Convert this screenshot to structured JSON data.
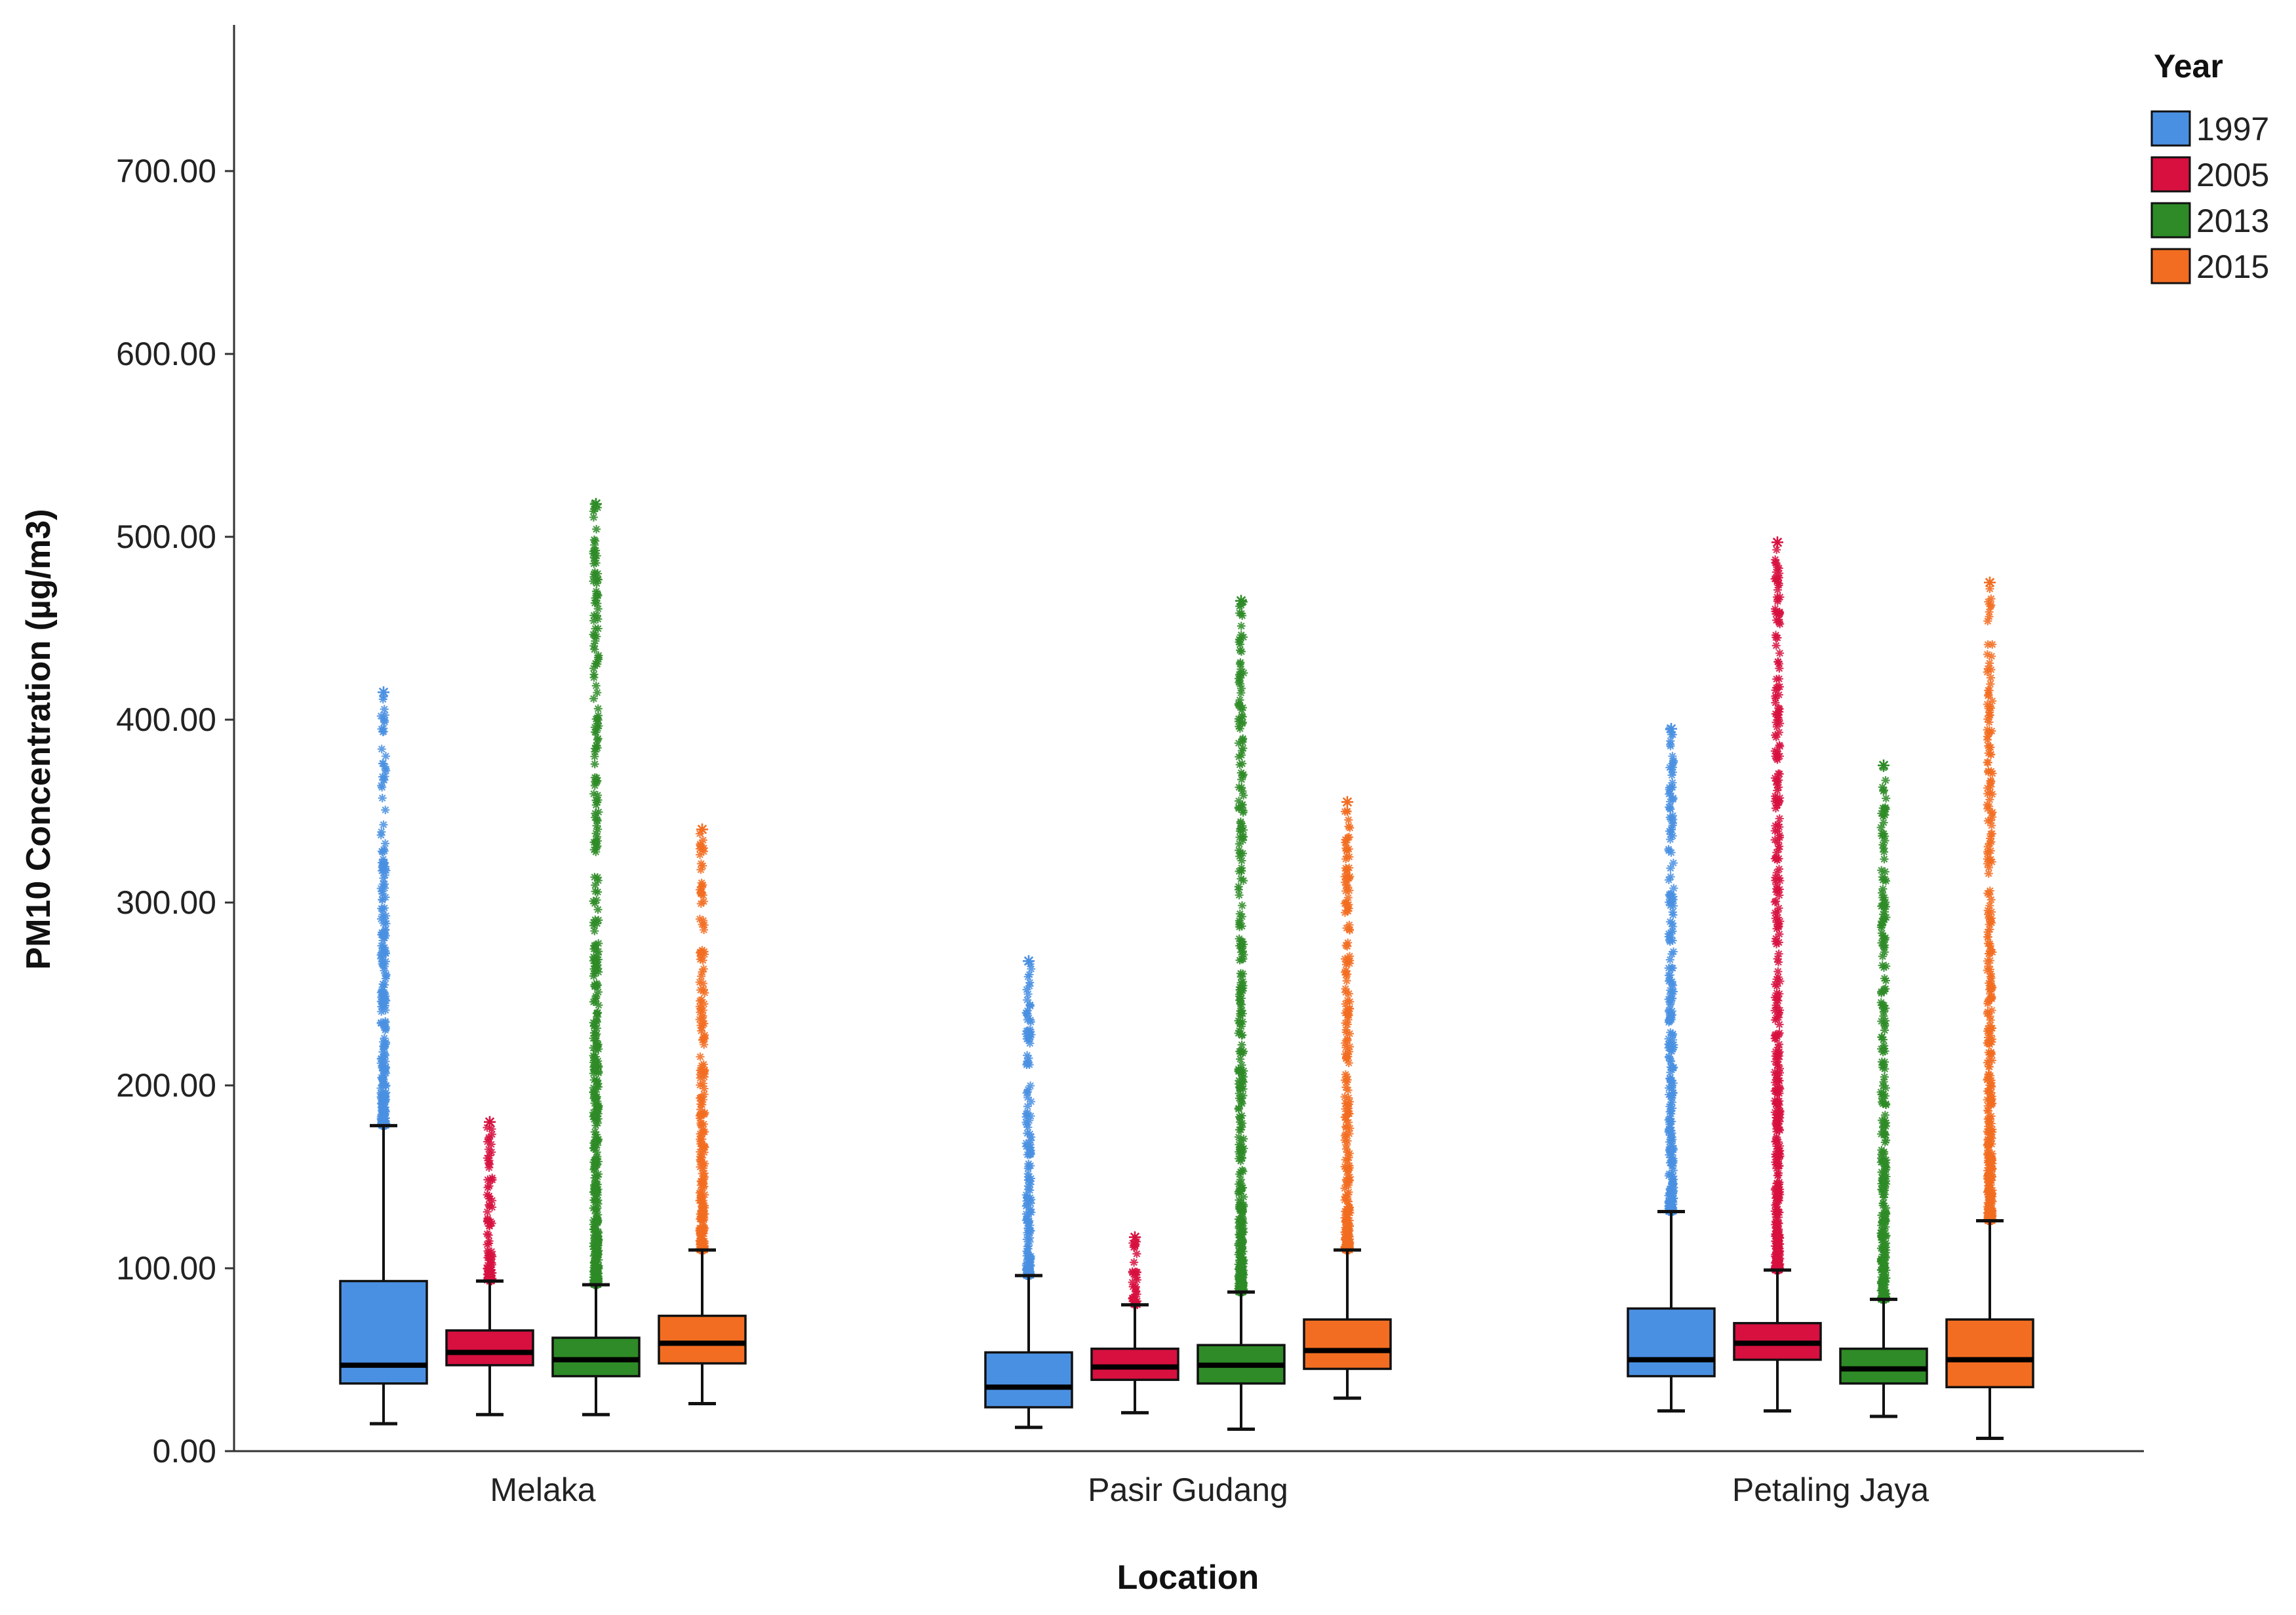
{
  "chart_data": {
    "type": "boxplot",
    "title": "",
    "xlabel": "Location",
    "ylabel": "PM10 Concentration (µg/m3)",
    "ylim": [
      0,
      780
    ],
    "yticks": [
      0,
      100,
      200,
      300,
      400,
      500,
      600,
      700
    ],
    "ytick_labels": [
      "0.00",
      "100.00",
      "200.00",
      "300.00",
      "400.00",
      "500.00",
      "600.00",
      "700.00"
    ],
    "grid": false,
    "legend": {
      "title": "Year",
      "position": "top-right",
      "entries": [
        "1997",
        "2005",
        "2013",
        "2015"
      ]
    },
    "categories": [
      "Melaka",
      "Pasir Gudang",
      "Petaling Jaya"
    ],
    "series": [
      {
        "name": "1997",
        "color": "#4a90e2",
        "boxes": [
          {
            "whisker_low": 15,
            "q1": 37,
            "median": 47,
            "q3": 93,
            "whisker_high": 178,
            "outlier_max": 415
          },
          {
            "whisker_low": 13,
            "q1": 24,
            "median": 35,
            "q3": 54,
            "whisker_high": 96,
            "outlier_max": 268
          },
          {
            "whisker_low": 22,
            "q1": 41,
            "median": 50,
            "q3": 78,
            "whisker_high": 131,
            "outlier_max": 395
          }
        ]
      },
      {
        "name": "2005",
        "color": "#d7103f",
        "boxes": [
          {
            "whisker_low": 20,
            "q1": 47,
            "median": 54,
            "q3": 66,
            "whisker_high": 93,
            "outlier_max": 180
          },
          {
            "whisker_low": 21,
            "q1": 39,
            "median": 46,
            "q3": 56,
            "whisker_high": 80,
            "outlier_max": 117
          },
          {
            "whisker_low": 22,
            "q1": 50,
            "median": 59,
            "q3": 70,
            "whisker_high": 99,
            "outlier_max": 497
          }
        ]
      },
      {
        "name": "2013",
        "color": "#2e8b27",
        "boxes": [
          {
            "whisker_low": 20,
            "q1": 41,
            "median": 50,
            "q3": 62,
            "whisker_high": 91,
            "outlier_max": 518
          },
          {
            "whisker_low": 12,
            "q1": 37,
            "median": 47,
            "q3": 58,
            "whisker_high": 87,
            "outlier_max": 465
          },
          {
            "whisker_low": 19,
            "q1": 37,
            "median": 45,
            "q3": 56,
            "whisker_high": 83,
            "outlier_max": 375
          }
        ]
      },
      {
        "name": "2015",
        "color": "#f26d21",
        "boxes": [
          {
            "whisker_low": 26,
            "q1": 48,
            "median": 59,
            "q3": 74,
            "whisker_high": 110,
            "outlier_max": 340
          },
          {
            "whisker_low": 29,
            "q1": 45,
            "median": 55,
            "q3": 72,
            "whisker_high": 110,
            "outlier_max": 355
          },
          {
            "whisker_low": 7,
            "q1": 35,
            "median": 50,
            "q3": 72,
            "whisker_high": 126,
            "outlier_max": 475
          }
        ]
      }
    ]
  }
}
